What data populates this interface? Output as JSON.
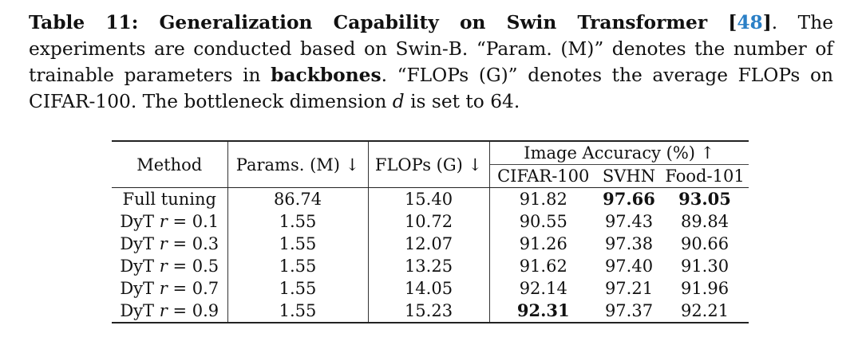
{
  "caption": {
    "title": "Table 11: Generalization Capability on Swin Transformer",
    "cite": "48",
    "text_1": ". The experiments are conducted based on Swin-B. “Param. (M)” denotes the number of trainable parameters in ",
    "bold_word": "backbones",
    "text_2": ". “FLOPs (G)” denotes the average FLOPs on CIFAR-100. The bottleneck dimension ",
    "var": "d",
    "text_3": " is set to 64."
  },
  "table": {
    "headers": {
      "method": "Method",
      "params": "Params. (M) ↓",
      "flops": "FLOPs (G) ↓",
      "group": "Image Accuracy (%) ↑",
      "cifar": "CIFAR-100",
      "svhn": "SVHN",
      "food": "Food-101"
    },
    "rows": [
      {
        "method": "Full tuning",
        "r": "",
        "params": "86.74",
        "flops": "15.40",
        "cifar": "91.82",
        "svhn": "97.66",
        "food": "93.05",
        "best": [
          "svhn",
          "food"
        ]
      },
      {
        "method": "DyT ",
        "r": "0.1",
        "params": "1.55",
        "flops": "10.72",
        "cifar": "90.55",
        "svhn": "97.43",
        "food": "89.84",
        "best": []
      },
      {
        "method": "DyT ",
        "r": "0.3",
        "params": "1.55",
        "flops": "12.07",
        "cifar": "91.26",
        "svhn": "97.38",
        "food": "90.66",
        "best": []
      },
      {
        "method": "DyT ",
        "r": "0.5",
        "params": "1.55",
        "flops": "13.25",
        "cifar": "91.62",
        "svhn": "97.40",
        "food": "91.30",
        "best": []
      },
      {
        "method": "DyT ",
        "r": "0.7",
        "params": "1.55",
        "flops": "14.05",
        "cifar": "92.14",
        "svhn": "97.21",
        "food": "91.96",
        "best": []
      },
      {
        "method": "DyT ",
        "r": "0.9",
        "params": "1.55",
        "flops": "15.23",
        "cifar": "92.31",
        "svhn": "97.37",
        "food": "92.21",
        "best": [
          "cifar"
        ]
      }
    ]
  }
}
